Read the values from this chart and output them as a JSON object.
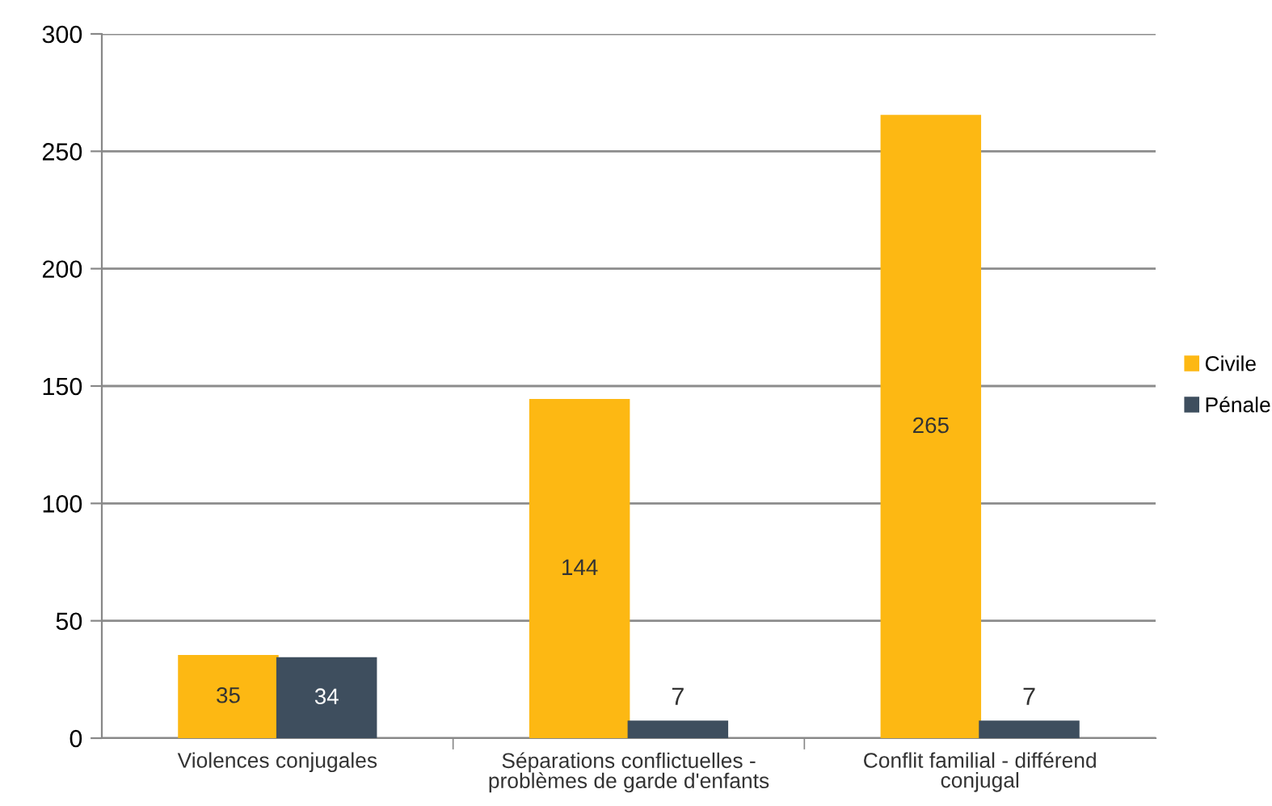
{
  "chart_data": {
    "type": "bar",
    "categories": [
      "Violences conjugales",
      "Séparations conflictuelles - problèmes de garde d'enfants",
      "Conflit familial - différend conjugal"
    ],
    "series": [
      {
        "name": "Civile",
        "color": "#fdb813",
        "values": [
          35,
          144,
          265
        ]
      },
      {
        "name": "Pénale",
        "color": "#3e4e5e",
        "values": [
          34,
          7,
          7
        ]
      }
    ],
    "ylim": [
      0,
      300
    ],
    "yticks": [
      0,
      50,
      100,
      150,
      200,
      250,
      300
    ],
    "grid": "y",
    "legend": "right",
    "data_labels": true
  }
}
